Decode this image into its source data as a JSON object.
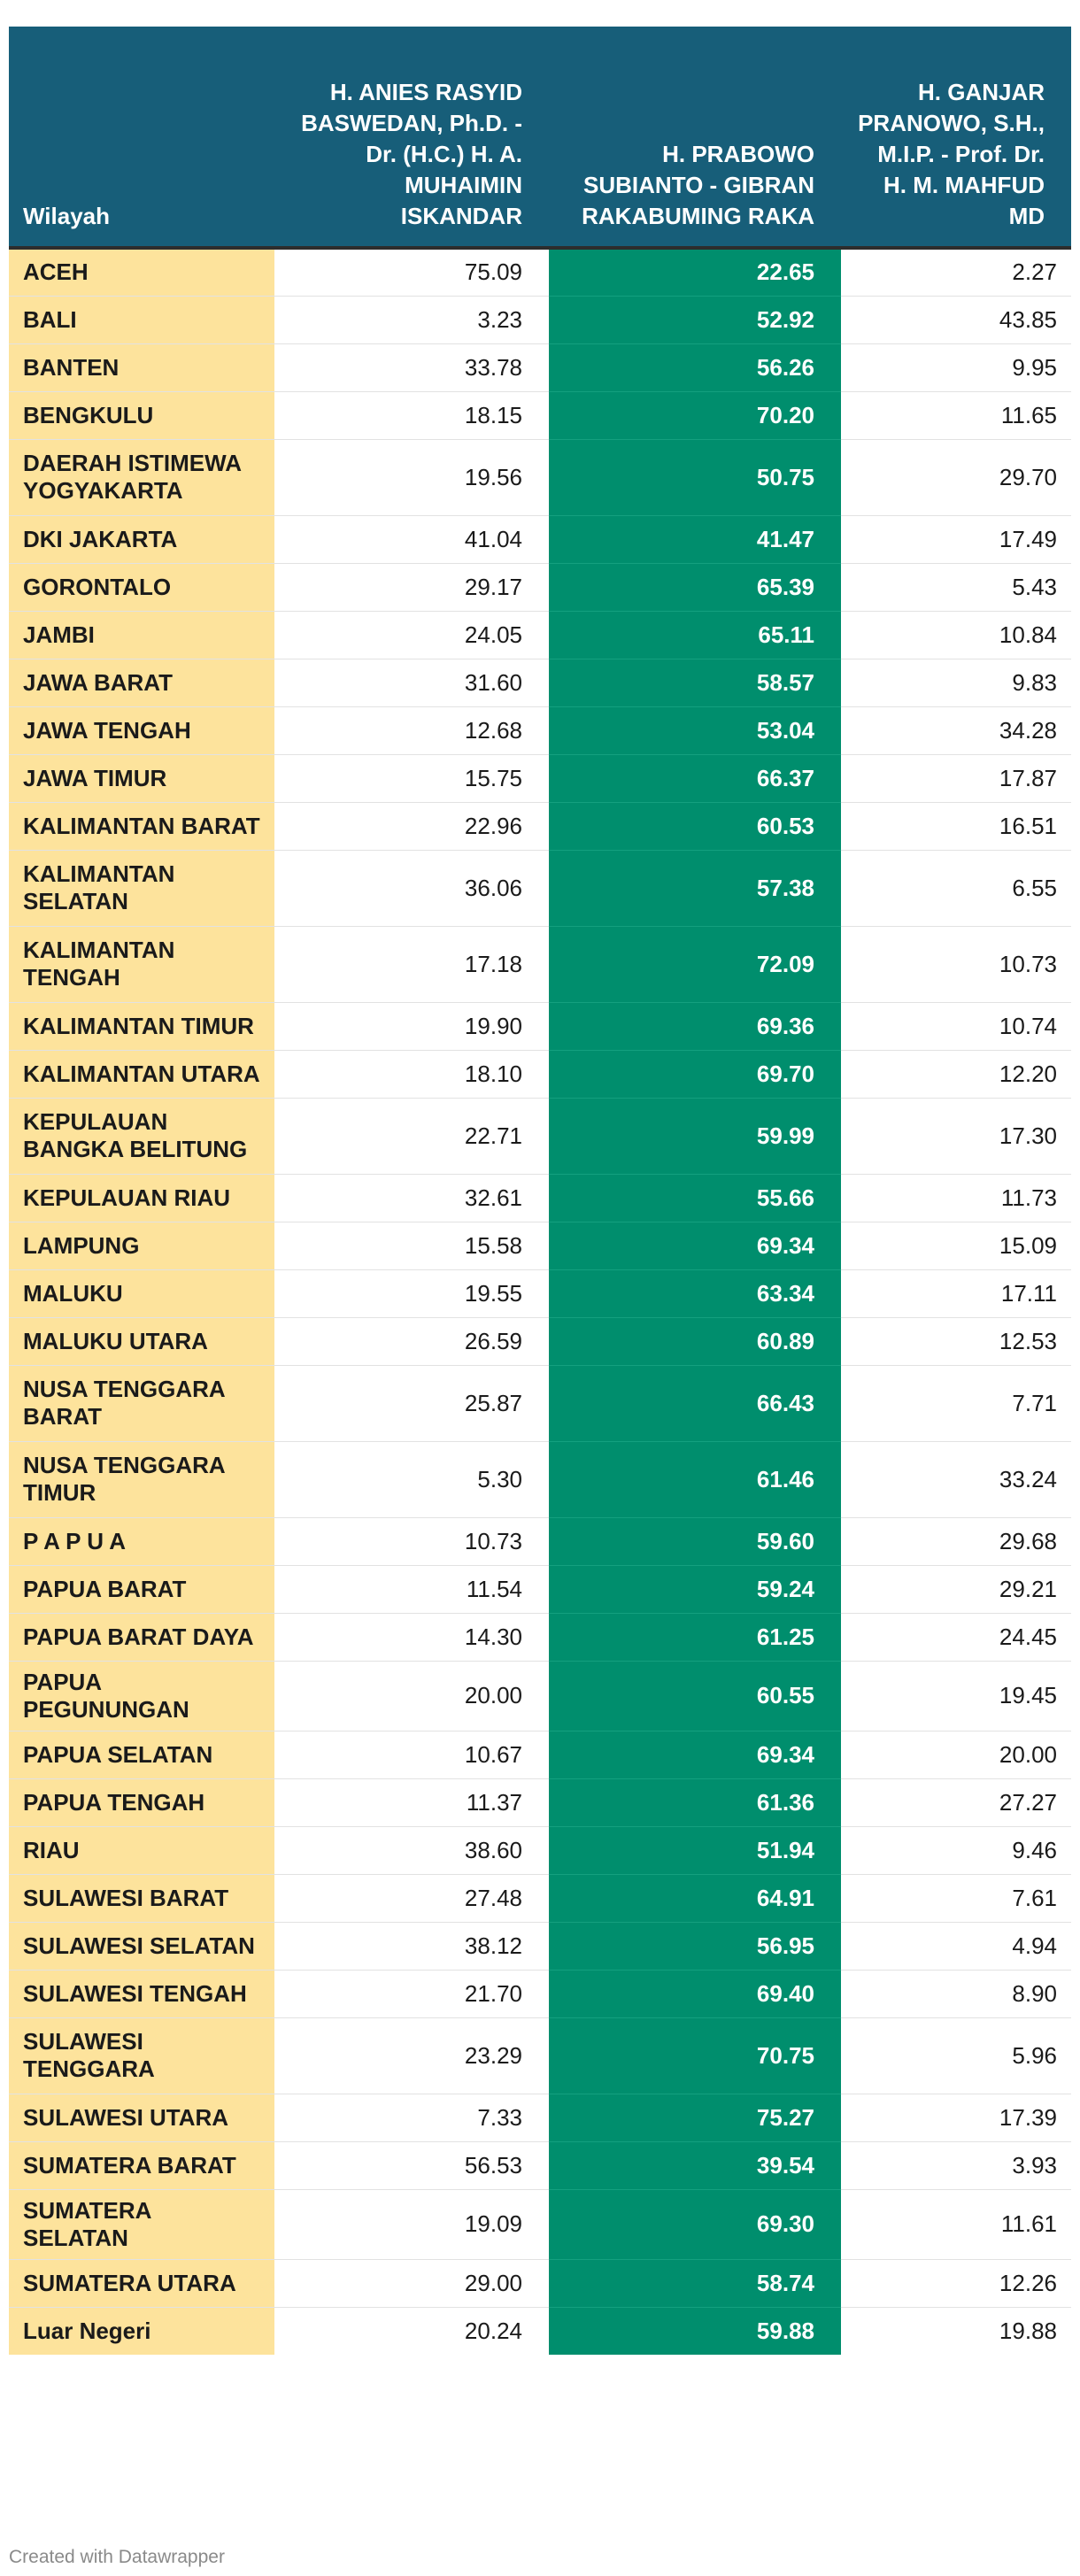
{
  "table": {
    "columns": [
      "Wilayah",
      "H. ANIES RASYID BASWEDAN, Ph.D. - Dr. (H.C.) H. A. MUHAIMIN ISKANDAR",
      "H. PRABOWO SUBIANTO - GIBRAN RAKABUMING RAKA",
      "H. GANJAR PRANOWO, S.H., M.I.P. - Prof. Dr. H. M. MAHFUD MD"
    ],
    "rows": [
      [
        "ACEH",
        "75.09",
        "22.65",
        "2.27"
      ],
      [
        "BALI",
        "3.23",
        "52.92",
        "43.85"
      ],
      [
        "BANTEN",
        "33.78",
        "56.26",
        "9.95"
      ],
      [
        "BENGKULU",
        "18.15",
        "70.20",
        "11.65"
      ],
      [
        "DAERAH ISTIMEWA YOGYAKARTA",
        "19.56",
        "50.75",
        "29.70"
      ],
      [
        "DKI JAKARTA",
        "41.04",
        "41.47",
        "17.49"
      ],
      [
        "GORONTALO",
        "29.17",
        "65.39",
        "5.43"
      ],
      [
        "JAMBI",
        "24.05",
        "65.11",
        "10.84"
      ],
      [
        "JAWA BARAT",
        "31.60",
        "58.57",
        "9.83"
      ],
      [
        "JAWA TENGAH",
        "12.68",
        "53.04",
        "34.28"
      ],
      [
        "JAWA TIMUR",
        "15.75",
        "66.37",
        "17.87"
      ],
      [
        "KALIMANTAN BARAT",
        "22.96",
        "60.53",
        "16.51"
      ],
      [
        "KALIMANTAN SELATAN",
        "36.06",
        "57.38",
        "6.55"
      ],
      [
        "KALIMANTAN TENGAH",
        "17.18",
        "72.09",
        "10.73"
      ],
      [
        "KALIMANTAN TIMUR",
        "19.90",
        "69.36",
        "10.74"
      ],
      [
        "KALIMANTAN UTARA",
        "18.10",
        "69.70",
        "12.20"
      ],
      [
        "KEPULAUAN BANGKA BELITUNG",
        "22.71",
        "59.99",
        "17.30"
      ],
      [
        "KEPULAUAN RIAU",
        "32.61",
        "55.66",
        "11.73"
      ],
      [
        "LAMPUNG",
        "15.58",
        "69.34",
        "15.09"
      ],
      [
        "MALUKU",
        "19.55",
        "63.34",
        "17.11"
      ],
      [
        "MALUKU UTARA",
        "26.59",
        "60.89",
        "12.53"
      ],
      [
        "NUSA TENGGARA BARAT",
        "25.87",
        "66.43",
        "7.71"
      ],
      [
        "NUSA TENGGARA TIMUR",
        "5.30",
        "61.46",
        "33.24"
      ],
      [
        "P A P U A",
        "10.73",
        "59.60",
        "29.68"
      ],
      [
        "PAPUA BARAT",
        "11.54",
        "59.24",
        "29.21"
      ],
      [
        "PAPUA BARAT DAYA",
        "14.30",
        "61.25",
        "24.45"
      ],
      [
        "PAPUA PEGUNUNGAN",
        "20.00",
        "60.55",
        "19.45"
      ],
      [
        "PAPUA SELATAN",
        "10.67",
        "69.34",
        "20.00"
      ],
      [
        "PAPUA TENGAH",
        "11.37",
        "61.36",
        "27.27"
      ],
      [
        "RIAU",
        "38.60",
        "51.94",
        "9.46"
      ],
      [
        "SULAWESI BARAT",
        "27.48",
        "64.91",
        "7.61"
      ],
      [
        "SULAWESI SELATAN",
        "38.12",
        "56.95",
        "4.94"
      ],
      [
        "SULAWESI TENGAH",
        "21.70",
        "69.40",
        "8.90"
      ],
      [
        "SULAWESI TENGGARA",
        "23.29",
        "70.75",
        "5.96"
      ],
      [
        "SULAWESI UTARA",
        "7.33",
        "75.27",
        "17.39"
      ],
      [
        "SUMATERA BARAT",
        "56.53",
        "39.54",
        "3.93"
      ],
      [
        "SUMATERA SELATAN",
        "19.09",
        "69.30",
        "11.61"
      ],
      [
        "SUMATERA UTARA",
        "29.00",
        "58.74",
        "12.26"
      ],
      [
        "Luar Negeri",
        "20.24",
        "59.88",
        "19.88"
      ]
    ]
  },
  "chart_data": {
    "type": "table",
    "columns": [
      "Wilayah",
      "H. ANIES RASYID BASWEDAN, Ph.D. - Dr. (H.C.) H. A. MUHAIMIN ISKANDAR",
      "H. PRABOWO SUBIANTO - GIBRAN RAKABUMING RAKA",
      "H. GANJAR PRANOWO, S.H., M.I.P. - Prof. Dr. H. M. MAHFUD MD"
    ],
    "row_count": 39,
    "highlight_colors": {
      "region_column": "#fde39c",
      "winner_column": "#008e6d",
      "header": "#175e79"
    }
  },
  "footer": {
    "credit": "Created with Datawrapper"
  }
}
